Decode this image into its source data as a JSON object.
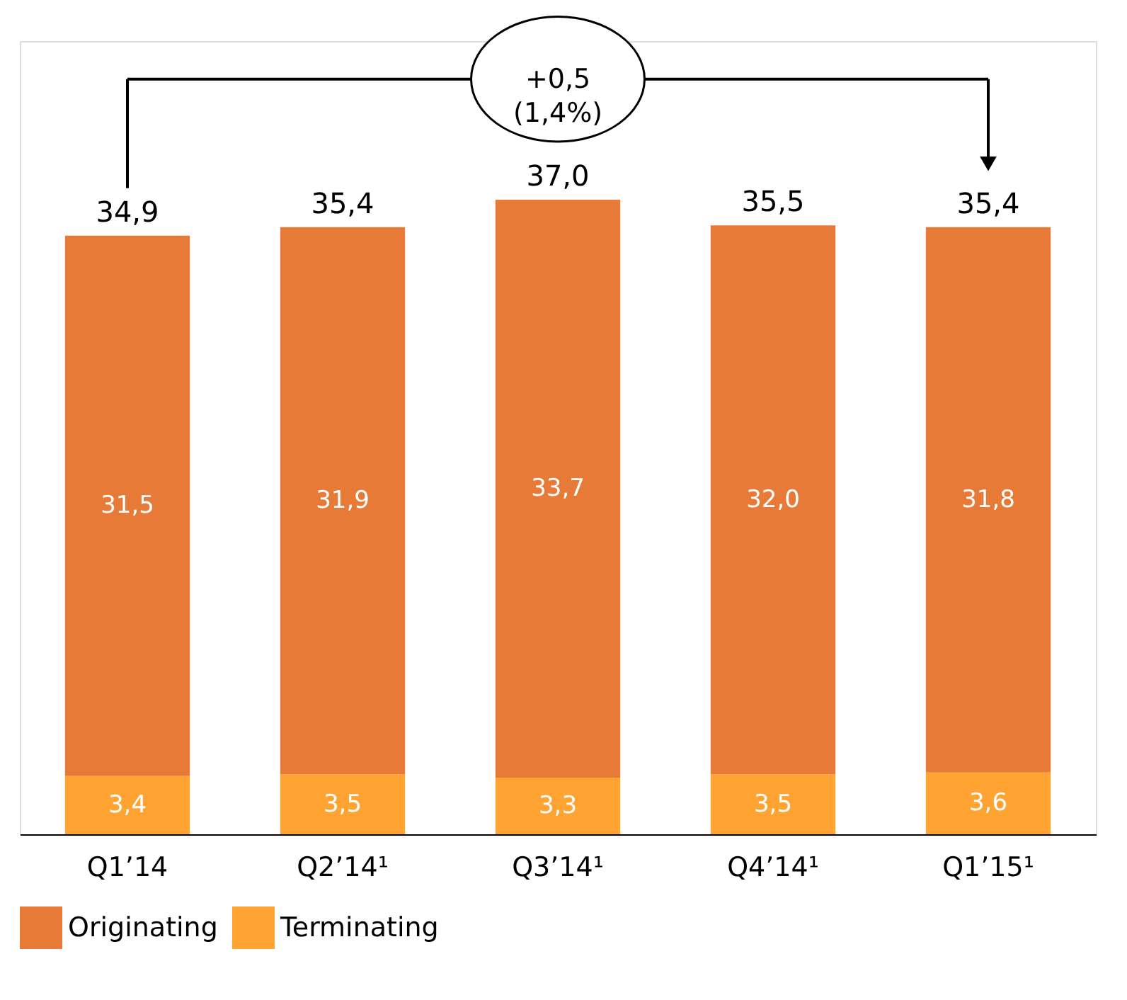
{
  "chart_data": {
    "type": "bar",
    "stacked": true,
    "categories": [
      "Q1’14",
      "Q2’14¹",
      "Q3’14¹",
      "Q4’14¹",
      "Q1’15¹"
    ],
    "series": [
      {
        "name": "Terminating",
        "color": "#ffa333",
        "values": [
          3.4,
          3.5,
          3.3,
          3.5,
          3.6
        ],
        "value_labels": [
          "3,4",
          "3,5",
          "3,3",
          "3,5",
          "3,6"
        ]
      },
      {
        "name": "Originating",
        "color": "#e87a38",
        "values": [
          31.5,
          31.9,
          33.7,
          32.0,
          31.8
        ],
        "value_labels": [
          "31,5",
          "31,9",
          "33,7",
          "32,0",
          "31,8"
        ]
      }
    ],
    "totals": [
      "34,9",
      "35,4",
      "37,0",
      "35,5",
      "35,4"
    ],
    "annotations": [
      "+0,5\n(1,4%)"
    ],
    "legend": "bottom",
    "grid": false,
    "tick_labels": "x"
  }
}
